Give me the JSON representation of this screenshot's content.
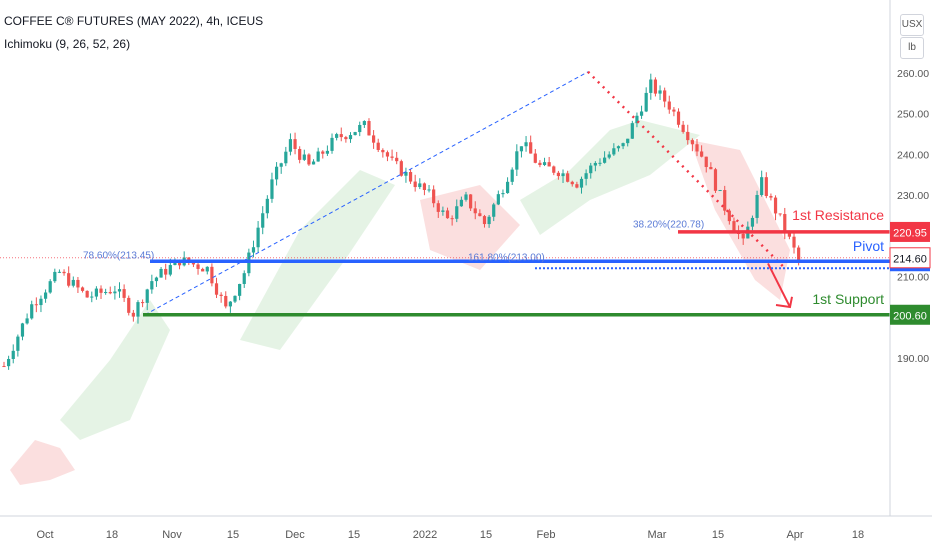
{
  "header": {
    "title": "COFFEE C® FUTURES (MAY 2022), 4h, ICEUS",
    "indicator": "Ichimoku (9, 26, 52, 26)",
    "currency": "USX",
    "unit": "lb"
  },
  "colors": {
    "up": "#26a69a",
    "down": "#ef5350",
    "resistance": "#f23645",
    "pivot": "#2962ff",
    "support": "#2e8b2e",
    "fib": "#2962ff"
  },
  "chart_data": {
    "type": "line",
    "title": "COFFEE C® FUTURES (MAY 2022), 4h, ICEUS",
    "symbol": "COFFEE C® FUTURES (MAY 2022)",
    "interval": "4h",
    "exchange": "ICEUS",
    "indicator": "Ichimoku (9, 26, 52, 26)",
    "x_ticks": [
      "Oct",
      "18",
      "Nov",
      "15",
      "Dec",
      "15",
      "2022",
      "15",
      "Feb",
      "Mar",
      "15",
      "Apr",
      "18"
    ],
    "y_ticks": [
      190.0,
      200.0,
      210.0,
      220.0,
      230.0,
      240.0,
      250.0,
      260.0
    ],
    "ylim": [
      185.5,
      270
    ],
    "price_x_days": [
      0,
      6,
      12,
      18,
      24,
      28,
      32,
      38,
      44,
      48,
      52,
      58,
      62,
      66,
      72,
      78,
      84,
      88,
      92,
      96,
      100,
      104,
      108,
      112,
      116,
      120,
      124,
      128,
      134,
      140,
      144,
      148,
      152,
      156,
      160,
      164,
      168,
      172
    ],
    "price_close": [
      188,
      203,
      211,
      205,
      207,
      201,
      209,
      214,
      212,
      202,
      211,
      233,
      243,
      237,
      244,
      247,
      238,
      234,
      230,
      224,
      229,
      223,
      232,
      243,
      237,
      236,
      233,
      238,
      242,
      257,
      252,
      245,
      238,
      227,
      218,
      233,
      224,
      214
    ],
    "levels": [
      {
        "name": "1st Resistance",
        "value": 220.95,
        "label": "220.95"
      },
      {
        "name": "Pivot",
        "value": 213.75,
        "label": "213.75"
      },
      {
        "name": "1st Support",
        "value": 200.6,
        "label": "200.60"
      }
    ],
    "last_price": {
      "value": 214.6,
      "label": "214.60"
    },
    "fib_annotations": [
      {
        "text": "78.60%(213.45)",
        "value": 213.45
      },
      {
        "text": "161.80%(213.00)",
        "value": 213.0
      },
      {
        "text": "38.20%(220.78)",
        "value": 220.78
      }
    ],
    "legend": "none",
    "grid": false
  }
}
